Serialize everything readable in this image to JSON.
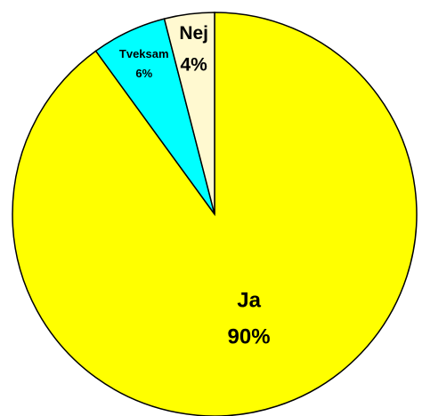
{
  "chart_data": {
    "type": "pie",
    "categories": [
      "Ja",
      "Tveksam",
      "Nej"
    ],
    "values": [
      90,
      6,
      4
    ],
    "value_labels": [
      "90%",
      "6%",
      "4%"
    ],
    "colors": [
      "#ffff00",
      "#00ffff",
      "#fff9d0"
    ]
  }
}
